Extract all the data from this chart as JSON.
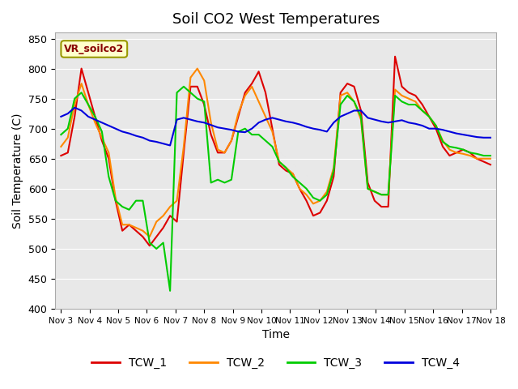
{
  "title": "Soil CO2 West Temperatures",
  "xlabel": "Time",
  "ylabel": "Soil Temperature (C)",
  "ylim": [
    400,
    860
  ],
  "yticks": [
    400,
    450,
    500,
    550,
    600,
    650,
    700,
    750,
    800,
    850
  ],
  "xtick_labels": [
    "Nov 3",
    "Nov 4",
    "Nov 5",
    "Nov 6",
    "Nov 7",
    "Nov 8",
    "Nov 9",
    "Nov 10",
    "Nov 11",
    "Nov 12",
    "Nov 13",
    "Nov 14",
    "Nov 15",
    "Nov 16",
    "Nov 17",
    "Nov 18"
  ],
  "legend_label": "VR_soilco2",
  "series_names": [
    "TCW_1",
    "TCW_2",
    "TCW_3",
    "TCW_4"
  ],
  "series_colors": [
    "#dd0000",
    "#ff8800",
    "#00cc00",
    "#0000dd"
  ],
  "TCW_1": [
    655,
    660,
    720,
    800,
    760,
    720,
    680,
    650,
    580,
    530,
    540,
    530,
    520,
    505,
    520,
    535,
    555,
    545,
    660,
    770,
    770,
    740,
    690,
    660,
    660,
    680,
    720,
    760,
    775,
    795,
    760,
    700,
    640,
    630,
    625,
    600,
    580,
    555,
    560,
    580,
    620,
    760,
    775,
    770,
    730,
    610,
    580,
    570,
    570,
    820,
    770,
    760,
    755,
    740,
    720,
    700,
    670,
    655,
    660,
    665,
    660,
    650,
    645,
    640
  ],
  "TCW_2": [
    670,
    685,
    740,
    775,
    740,
    710,
    685,
    660,
    585,
    540,
    540,
    535,
    530,
    520,
    545,
    555,
    570,
    580,
    670,
    785,
    800,
    780,
    710,
    665,
    660,
    680,
    725,
    755,
    770,
    745,
    720,
    695,
    645,
    635,
    625,
    600,
    590,
    575,
    580,
    595,
    635,
    755,
    760,
    745,
    715,
    600,
    595,
    590,
    590,
    765,
    755,
    750,
    745,
    730,
    720,
    705,
    680,
    665,
    660,
    658,
    655,
    650,
    650,
    650
  ],
  "TCW_3": [
    690,
    700,
    750,
    760,
    740,
    720,
    695,
    620,
    580,
    570,
    565,
    580,
    580,
    510,
    500,
    510,
    430,
    760,
    770,
    760,
    750,
    745,
    610,
    615,
    610,
    615,
    695,
    700,
    690,
    690,
    680,
    670,
    645,
    635,
    620,
    610,
    600,
    585,
    580,
    590,
    630,
    740,
    755,
    745,
    720,
    600,
    595,
    590,
    590,
    755,
    745,
    740,
    740,
    730,
    720,
    705,
    678,
    670,
    668,
    665,
    660,
    658,
    655,
    655
  ],
  "TCW_4": [
    720,
    725,
    735,
    730,
    720,
    715,
    710,
    705,
    700,
    695,
    692,
    688,
    685,
    680,
    678,
    675,
    672,
    715,
    718,
    715,
    712,
    710,
    706,
    702,
    700,
    698,
    695,
    694,
    700,
    710,
    715,
    718,
    715,
    712,
    710,
    707,
    703,
    700,
    698,
    695,
    710,
    720,
    725,
    730,
    730,
    718,
    715,
    712,
    710,
    712,
    714,
    710,
    708,
    705,
    700,
    700,
    698,
    695,
    692,
    690,
    688,
    686,
    685,
    685
  ]
}
